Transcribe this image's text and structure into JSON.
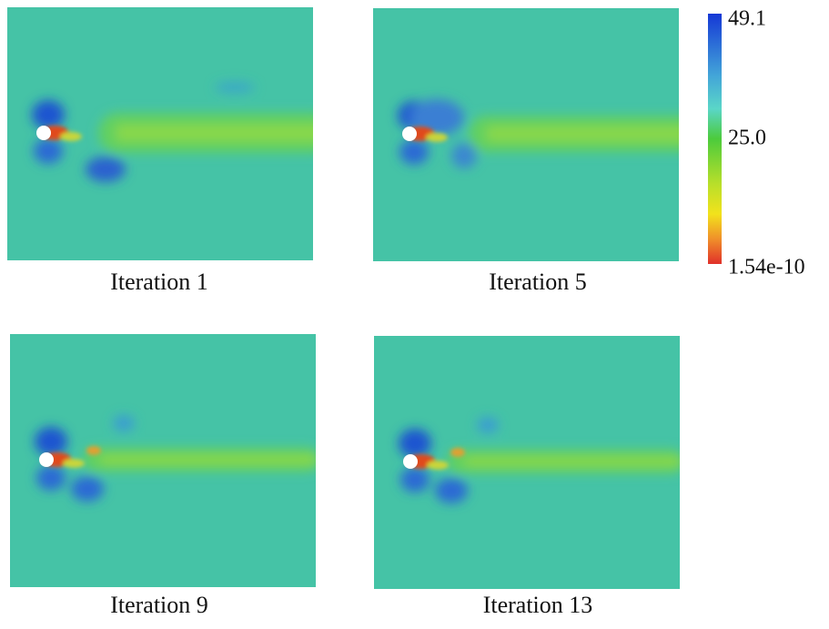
{
  "panels": [
    {
      "caption": "Iteration 1"
    },
    {
      "caption": "Iteration 5"
    },
    {
      "caption": "Iteration 9"
    },
    {
      "caption": "Iteration 13"
    }
  ],
  "colorbar": {
    "labels": [
      "49.1",
      "25.0",
      "1.54e-10"
    ]
  }
}
